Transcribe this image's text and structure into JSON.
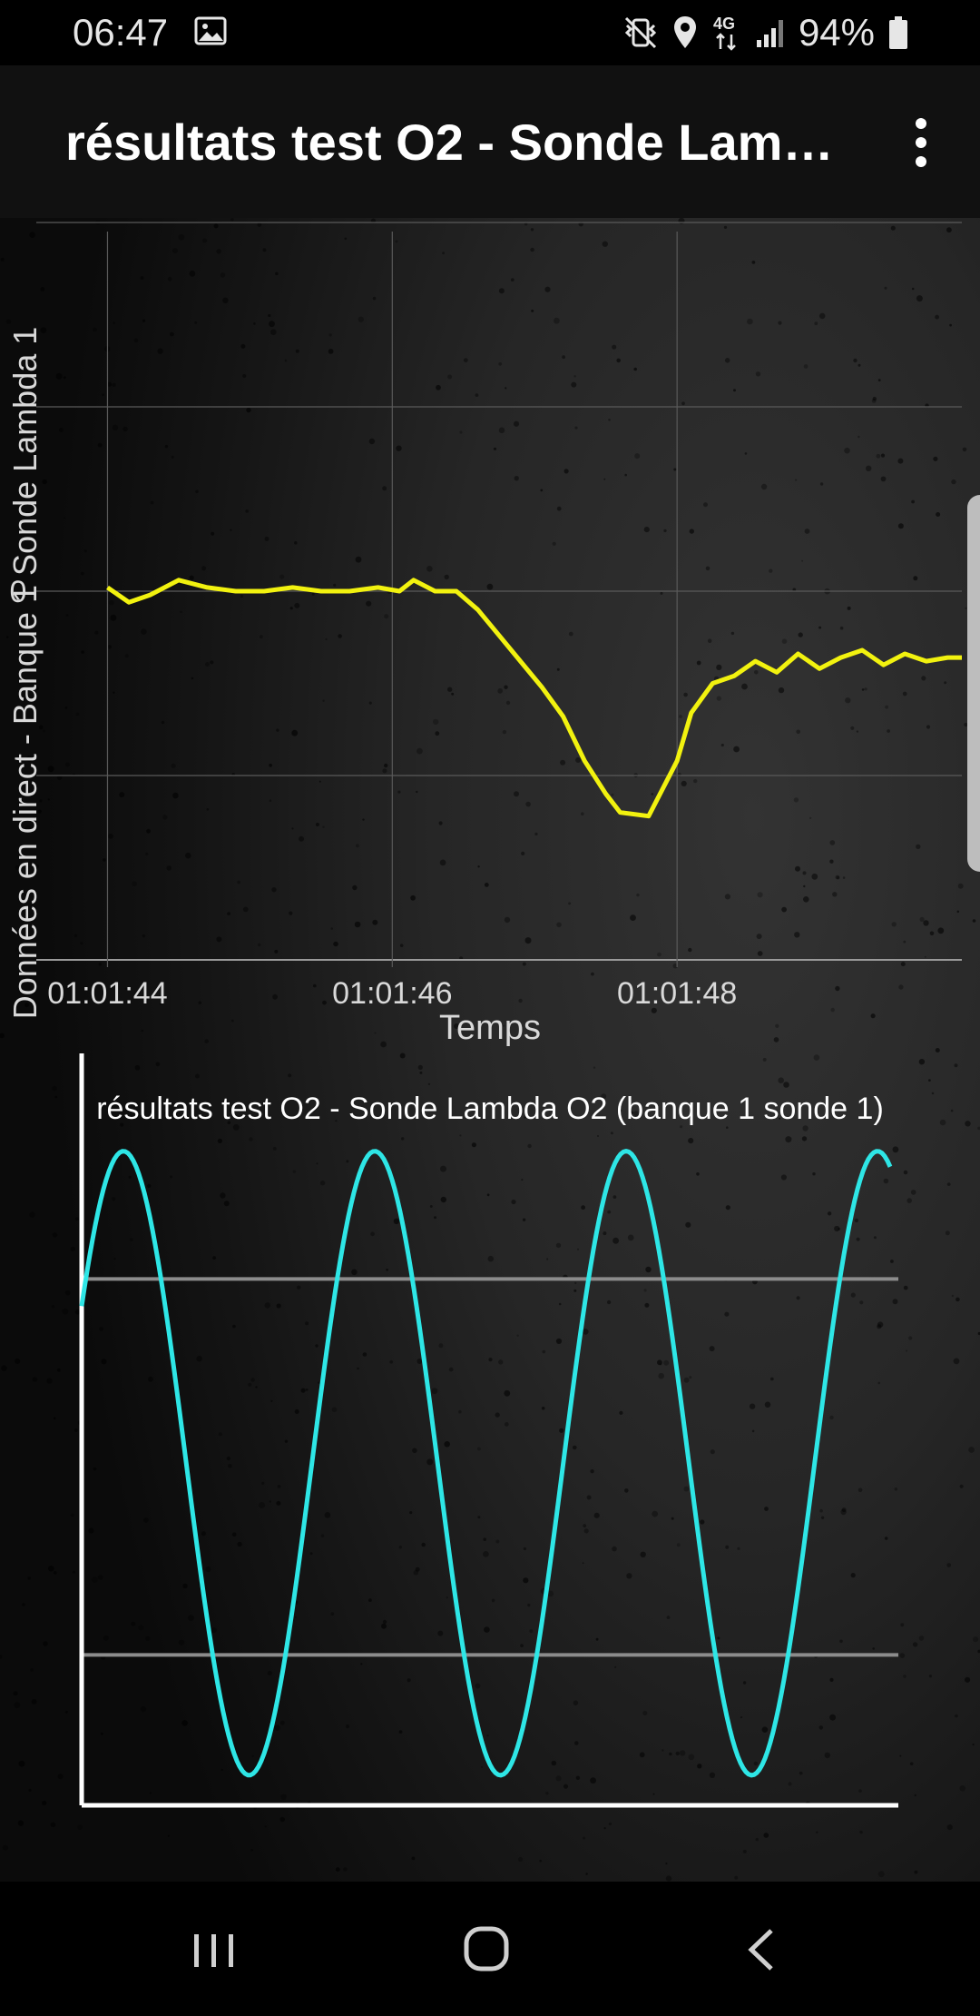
{
  "status_bar": {
    "time": "06:47",
    "battery": "94%",
    "network": "4G",
    "icons": [
      "gallery-icon",
      "mute-vibrate-icon",
      "location-icon",
      "4g-data-icon",
      "signal-icon",
      "battery-icon"
    ]
  },
  "app_bar": {
    "title": "résultats test O2 - Sonde Lambda O2 (banque 1 sonde 1)",
    "menu_icon": "more-vert-icon"
  },
  "chart_data": [
    {
      "type": "line",
      "ylabel": "Données en direct - Banque 1 Sonde Lambda 1",
      "xlabel": "Temps",
      "x_tick_labels": [
        "01:01:44",
        "01:01:46",
        "01:01:48"
      ],
      "y_tick_label": "0",
      "grid": true,
      "series": [
        {
          "color": "#f2f20f",
          "x": [
            0,
            0.15,
            0.3,
            0.5,
            0.7,
            0.9,
            1.1,
            1.3,
            1.5,
            1.7,
            1.9,
            2.05,
            2.15,
            2.3,
            2.45,
            2.6,
            2.75,
            2.9,
            3.05,
            3.2,
            3.35,
            3.5,
            3.6,
            3.8,
            4.0,
            4.1,
            4.25,
            4.4,
            4.55,
            4.7,
            4.85,
            5.0,
            5.15,
            5.3,
            5.45,
            5.6,
            5.75,
            5.9,
            6.0
          ],
          "y": [
            0.01,
            -0.03,
            -0.01,
            0.03,
            0.01,
            0.0,
            0.0,
            0.01,
            0.0,
            0.0,
            0.01,
            0.0,
            0.03,
            0.0,
            0.0,
            -0.05,
            -0.12,
            -0.19,
            -0.26,
            -0.34,
            -0.46,
            -0.55,
            -0.6,
            -0.61,
            -0.46,
            -0.33,
            -0.25,
            -0.23,
            -0.19,
            -0.22,
            -0.17,
            -0.21,
            -0.18,
            -0.16,
            -0.2,
            -0.17,
            -0.19,
            -0.18,
            -0.18
          ]
        }
      ]
    },
    {
      "type": "line",
      "title": "résultats test O2 - Sonde Lambda O2 (banque 1 sonde 1)",
      "grid": false,
      "reference_lines": [
        0.7,
        0.2
      ],
      "series": [
        {
          "color": "#2ee6e6",
          "waveform": "sine",
          "cycles": 3.2,
          "max": 0.87,
          "min": 0.04
        }
      ]
    }
  ],
  "nav_bar": {
    "buttons": [
      "recent-apps-icon",
      "home-icon",
      "back-icon"
    ]
  }
}
